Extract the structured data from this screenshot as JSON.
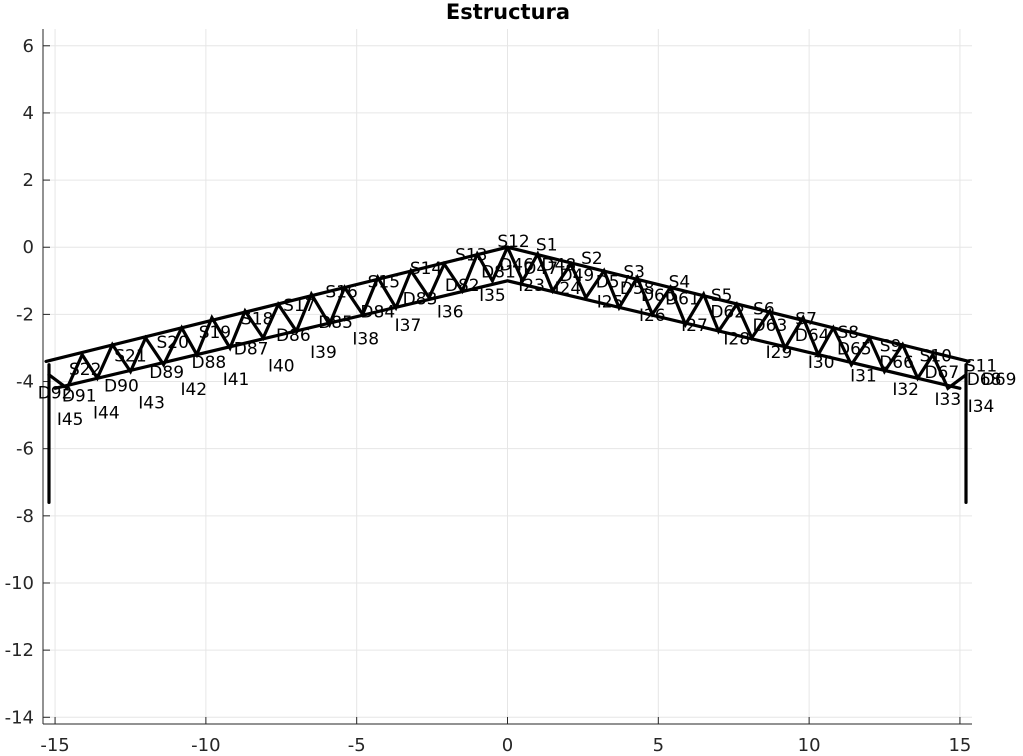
{
  "chart_data": {
    "type": "line",
    "title": "Estructura",
    "xlabel": "",
    "ylabel": "",
    "xlim": [
      -15.4,
      15.4
    ],
    "ylim": [
      -14.2,
      6.5
    ],
    "grid": true,
    "x_ticks": [
      -15,
      -10,
      -5,
      0,
      5,
      10,
      15
    ],
    "y_ticks": [
      6,
      4,
      2,
      0,
      -2,
      -4,
      -6,
      -8,
      -10,
      -12,
      -14
    ],
    "series": [
      {
        "x": [
          -15.3,
          0,
          15.3
        ],
        "y": [
          -3.4,
          0,
          -3.4
        ]
      },
      {
        "x": [
          -15.0,
          0,
          15.0
        ],
        "y": [
          -4.2,
          -1.0,
          -4.2
        ]
      },
      {
        "x": [
          -15.2,
          -15.2
        ],
        "y": [
          -3.5,
          -7.6
        ]
      },
      {
        "x": [
          15.2,
          15.2
        ],
        "y": [
          -3.5,
          -7.6
        ]
      },
      {
        "x": [
          -15.2,
          -14.6,
          -14.1,
          -13.6,
          -13.1,
          -12.5,
          -12.0,
          -11.4,
          -10.8,
          -10.3,
          -9.8,
          -9.2,
          -8.7,
          -8.1,
          -7.6,
          -7.0,
          -6.5,
          -5.9,
          -5.4,
          -4.8,
          -4.3,
          -3.7,
          -3.2,
          -2.6,
          -2.1,
          -1.5,
          -1.0,
          -0.5,
          0
        ],
        "y": [
          -3.8,
          -4.2,
          -3.2,
          -3.9,
          -2.9,
          -3.7,
          -2.7,
          -3.5,
          -2.4,
          -3.2,
          -2.1,
          -3.0,
          -1.9,
          -2.7,
          -1.7,
          -2.5,
          -1.4,
          -2.3,
          -1.2,
          -2.0,
          -0.9,
          -1.8,
          -0.7,
          -1.5,
          -0.5,
          -1.3,
          -0.2,
          -1.0,
          0
        ]
      },
      {
        "x": [
          0,
          0.5,
          1.0,
          1.5,
          2.1,
          2.6,
          3.2,
          3.7,
          4.3,
          4.8,
          5.4,
          5.9,
          6.5,
          7.0,
          7.6,
          8.1,
          8.7,
          9.2,
          9.8,
          10.3,
          10.8,
          11.4,
          12.0,
          12.5,
          13.1,
          13.6,
          14.1,
          14.6,
          15.2
        ],
        "y": [
          0,
          -1.0,
          -0.2,
          -1.3,
          -0.5,
          -1.5,
          -0.7,
          -1.8,
          -0.9,
          -2.0,
          -1.2,
          -2.3,
          -1.4,
          -2.5,
          -1.7,
          -2.7,
          -1.9,
          -3.0,
          -2.1,
          -3.2,
          -2.4,
          -3.5,
          -2.7,
          -3.7,
          -2.9,
          -3.9,
          -3.2,
          -4.2,
          -3.8
        ]
      }
    ],
    "annotations": [
      {
        "text": "S1",
        "x": 1.3,
        "y": -0.1
      },
      {
        "text": "S2",
        "x": 2.8,
        "y": -0.5
      },
      {
        "text": "S3",
        "x": 4.2,
        "y": -0.9
      },
      {
        "text": "S4",
        "x": 5.7,
        "y": -1.2
      },
      {
        "text": "S5",
        "x": 7.1,
        "y": -1.6
      },
      {
        "text": "S6",
        "x": 8.5,
        "y": -2.0
      },
      {
        "text": "S7",
        "x": 9.9,
        "y": -2.3
      },
      {
        "text": "S8",
        "x": 11.3,
        "y": -2.7
      },
      {
        "text": "S9",
        "x": 12.7,
        "y": -3.1
      },
      {
        "text": "S10",
        "x": 14.2,
        "y": -3.4
      },
      {
        "text": "S11",
        "x": 15.7,
        "y": -3.7
      },
      {
        "text": "S12",
        "x": 0.2,
        "y": 0.0
      },
      {
        "text": "S13",
        "x": -1.2,
        "y": -0.4
      },
      {
        "text": "S14",
        "x": -2.7,
        "y": -0.8
      },
      {
        "text": "S15",
        "x": -4.1,
        "y": -1.2
      },
      {
        "text": "S16",
        "x": -5.5,
        "y": -1.5
      },
      {
        "text": "S17",
        "x": -6.9,
        "y": -1.9
      },
      {
        "text": "S18",
        "x": -8.3,
        "y": -2.3
      },
      {
        "text": "S19",
        "x": -9.7,
        "y": -2.7
      },
      {
        "text": "S20",
        "x": -11.1,
        "y": -3.0
      },
      {
        "text": "S21",
        "x": -12.5,
        "y": -3.4
      },
      {
        "text": "S22",
        "x": -14.0,
        "y": -3.8
      },
      {
        "text": "I23",
        "x": 0.8,
        "y": -1.3
      },
      {
        "text": "I24",
        "x": 2.0,
        "y": -1.4
      },
      {
        "text": "I25",
        "x": 3.4,
        "y": -1.8
      },
      {
        "text": "I26",
        "x": 4.8,
        "y": -2.2
      },
      {
        "text": "I27",
        "x": 6.2,
        "y": -2.5
      },
      {
        "text": "I28",
        "x": 7.6,
        "y": -2.9
      },
      {
        "text": "I29",
        "x": 9.0,
        "y": -3.3
      },
      {
        "text": "I30",
        "x": 10.4,
        "y": -3.6
      },
      {
        "text": "I31",
        "x": 11.8,
        "y": -4.0
      },
      {
        "text": "I32",
        "x": 13.2,
        "y": -4.4
      },
      {
        "text": "I33",
        "x": 14.6,
        "y": -4.7
      },
      {
        "text": "I34",
        "x": 15.7,
        "y": -4.9
      },
      {
        "text": "I35",
        "x": -0.5,
        "y": -1.6
      },
      {
        "text": "I36",
        "x": -1.9,
        "y": -2.1
      },
      {
        "text": "I37",
        "x": -3.3,
        "y": -2.5
      },
      {
        "text": "I38",
        "x": -4.7,
        "y": -2.9
      },
      {
        "text": "I39",
        "x": -6.1,
        "y": -3.3
      },
      {
        "text": "I40",
        "x": -7.5,
        "y": -3.7
      },
      {
        "text": "I41",
        "x": -9.0,
        "y": -4.1
      },
      {
        "text": "I42",
        "x": -10.4,
        "y": -4.4
      },
      {
        "text": "I43",
        "x": -11.8,
        "y": -4.8
      },
      {
        "text": "I44",
        "x": -13.3,
        "y": -5.1
      },
      {
        "text": "I45",
        "x": -14.5,
        "y": -5.3
      },
      {
        "text": "D46",
        "x": 0.3,
        "y": -0.7
      },
      {
        "text": "D47",
        "x": 1.1,
        "y": -0.8
      },
      {
        "text": "D48",
        "x": 1.7,
        "y": -0.7
      },
      {
        "text": "D49",
        "x": 2.3,
        "y": -1.0
      },
      {
        "text": "D57",
        "x": 3.5,
        "y": -1.2
      },
      {
        "text": "D58",
        "x": 4.3,
        "y": -1.4
      },
      {
        "text": "D60",
        "x": 5.0,
        "y": -1.6
      },
      {
        "text": "D61",
        "x": 5.8,
        "y": -1.7
      },
      {
        "text": "D62",
        "x": 7.3,
        "y": -2.1
      },
      {
        "text": "D63",
        "x": 8.7,
        "y": -2.5
      },
      {
        "text": "D64",
        "x": 10.1,
        "y": -2.8
      },
      {
        "text": "D65",
        "x": 11.5,
        "y": -3.2
      },
      {
        "text": "D66",
        "x": 12.9,
        "y": -3.6
      },
      {
        "text": "D67",
        "x": 14.4,
        "y": -3.9
      },
      {
        "text": "D68",
        "x": 15.8,
        "y": -4.1
      },
      {
        "text": "D69",
        "x": 16.3,
        "y": -4.1
      },
      {
        "text": "D81",
        "x": -0.3,
        "y": -0.9
      },
      {
        "text": "D82",
        "x": -1.5,
        "y": -1.3
      },
      {
        "text": "D83",
        "x": -2.9,
        "y": -1.7
      },
      {
        "text": "D84",
        "x": -4.3,
        "y": -2.1
      },
      {
        "text": "D85",
        "x": -5.7,
        "y": -2.4
      },
      {
        "text": "D86",
        "x": -7.1,
        "y": -2.8
      },
      {
        "text": "D87",
        "x": -8.5,
        "y": -3.2
      },
      {
        "text": "D88",
        "x": -9.9,
        "y": -3.6
      },
      {
        "text": "D89",
        "x": -11.3,
        "y": -3.9
      },
      {
        "text": "D90",
        "x": -12.8,
        "y": -4.3
      },
      {
        "text": "D91",
        "x": -14.2,
        "y": -4.6
      },
      {
        "text": "D92",
        "x": -15.0,
        "y": -4.5
      }
    ]
  }
}
